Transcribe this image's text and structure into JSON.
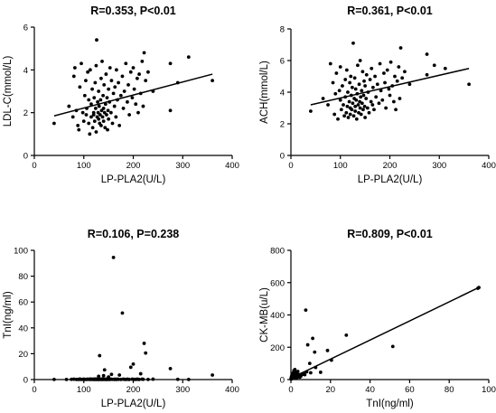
{
  "chart_data": [
    {
      "type": "scatter",
      "title": "R=0.353, P<0.01",
      "xlabel": "LP-PLA2(U/L)",
      "ylabel": "LDL-C(mmol/L)",
      "xlim": [
        0,
        400
      ],
      "ylim": [
        0,
        6
      ],
      "xticks": [
        0,
        100,
        200,
        300,
        400
      ],
      "yticks": [
        0,
        2,
        4,
        6
      ],
      "fit_line": [
        [
          40,
          1.85
        ],
        [
          360,
          3.8
        ]
      ],
      "points": [
        [
          40,
          1.5
        ],
        [
          70,
          2.3
        ],
        [
          78,
          1.8
        ],
        [
          80,
          3.7
        ],
        [
          82,
          4.1
        ],
        [
          85,
          2.1
        ],
        [
          88,
          1.4
        ],
        [
          90,
          1.2
        ],
        [
          92,
          3.2
        ],
        [
          95,
          4.3
        ],
        [
          98,
          2.0
        ],
        [
          100,
          1.6
        ],
        [
          102,
          2.8
        ],
        [
          104,
          3.5
        ],
        [
          105,
          1.9
        ],
        [
          106,
          2.2
        ],
        [
          108,
          3.9
        ],
        [
          110,
          1.5
        ],
        [
          110,
          2.6
        ],
        [
          112,
          1.0
        ],
        [
          113,
          4.0
        ],
        [
          115,
          2.4
        ],
        [
          115,
          1.8
        ],
        [
          117,
          3.1
        ],
        [
          118,
          1.3
        ],
        [
          120,
          2.0
        ],
        [
          120,
          1.9
        ],
        [
          121,
          2.7
        ],
        [
          122,
          1.6
        ],
        [
          123,
          3.4
        ],
        [
          124,
          2.2
        ],
        [
          125,
          1.1
        ],
        [
          125,
          4.2
        ],
        [
          126,
          5.4
        ],
        [
          127,
          1.8
        ],
        [
          128,
          2.5
        ],
        [
          129,
          2.0
        ],
        [
          130,
          1.7
        ],
        [
          130,
          3.0
        ],
        [
          131,
          2.3
        ],
        [
          132,
          1.5
        ],
        [
          133,
          1.9
        ],
        [
          134,
          2.6
        ],
        [
          135,
          3.6
        ],
        [
          135,
          1.4
        ],
        [
          136,
          2.1
        ],
        [
          137,
          4.4
        ],
        [
          138,
          1.8
        ],
        [
          139,
          2.8
        ],
        [
          140,
          2.2
        ],
        [
          140,
          1.6
        ],
        [
          141,
          3.3
        ],
        [
          142,
          2.0
        ],
        [
          143,
          1.3
        ],
        [
          144,
          2.4
        ],
        [
          145,
          3.8
        ],
        [
          146,
          1.9
        ],
        [
          147,
          2.7
        ],
        [
          148,
          1.2
        ],
        [
          149,
          2.1
        ],
        [
          150,
          3.1
        ],
        [
          150,
          1.7
        ],
        [
          152,
          2.5
        ],
        [
          153,
          4.1
        ],
        [
          155,
          2.0
        ],
        [
          156,
          3.5
        ],
        [
          158,
          1.5
        ],
        [
          160,
          2.9
        ],
        [
          162,
          2.3
        ],
        [
          163,
          3.2
        ],
        [
          165,
          1.8
        ],
        [
          166,
          4.0
        ],
        [
          168,
          2.6
        ],
        [
          170,
          3.4
        ],
        [
          172,
          1.4
        ],
        [
          175,
          2.8
        ],
        [
          178,
          3.7
        ],
        [
          180,
          2.2
        ],
        [
          182,
          3.0
        ],
        [
          185,
          4.3
        ],
        [
          188,
          2.5
        ],
        [
          190,
          3.3
        ],
        [
          192,
          1.9
        ],
        [
          195,
          3.9
        ],
        [
          198,
          2.7
        ],
        [
          200,
          4.1
        ],
        [
          202,
          3.1
        ],
        [
          205,
          2.4
        ],
        [
          208,
          3.6
        ],
        [
          210,
          2.0
        ],
        [
          212,
          3.8
        ],
        [
          215,
          2.9
        ],
        [
          218,
          4.4
        ],
        [
          220,
          2.3
        ],
        [
          222,
          4.8
        ],
        [
          225,
          3.5
        ],
        [
          230,
          3.9
        ],
        [
          240,
          3.0
        ],
        [
          275,
          2.1
        ],
        [
          275,
          4.3
        ],
        [
          290,
          3.4
        ],
        [
          312,
          4.6
        ],
        [
          360,
          3.5
        ]
      ]
    },
    {
      "type": "scatter",
      "title": "R=0.361, P<0.01",
      "xlabel": "LP-PLA2(U/L)",
      "ylabel": "ACH(mmol/L)",
      "xlim": [
        0,
        400
      ],
      "ylim": [
        0,
        8
      ],
      "xticks": [
        0,
        100,
        200,
        300,
        400
      ],
      "yticks": [
        0,
        2,
        4,
        6,
        8
      ],
      "fit_line": [
        [
          40,
          3.2
        ],
        [
          360,
          5.5
        ]
      ],
      "points": [
        [
          40,
          2.8
        ],
        [
          65,
          3.6
        ],
        [
          75,
          3.2
        ],
        [
          80,
          5.8
        ],
        [
          85,
          4.6
        ],
        [
          88,
          2.6
        ],
        [
          90,
          3.9
        ],
        [
          92,
          5.2
        ],
        [
          95,
          2.3
        ],
        [
          98,
          4.1
        ],
        [
          100,
          3.5
        ],
        [
          100,
          5.6
        ],
        [
          102,
          2.9
        ],
        [
          104,
          4.4
        ],
        [
          106,
          3.2
        ],
        [
          108,
          2.5
        ],
        [
          110,
          4.8
        ],
        [
          110,
          3.7
        ],
        [
          112,
          2.7
        ],
        [
          113,
          5.4
        ],
        [
          114,
          3.1
        ],
        [
          115,
          4.0
        ],
        [
          116,
          2.4
        ],
        [
          118,
          3.4
        ],
        [
          119,
          4.6
        ],
        [
          120,
          3.0
        ],
        [
          120,
          2.6
        ],
        [
          121,
          5.0
        ],
        [
          122,
          3.8
        ],
        [
          123,
          2.9
        ],
        [
          124,
          4.3
        ],
        [
          125,
          3.3
        ],
        [
          126,
          7.1
        ],
        [
          127,
          2.5
        ],
        [
          128,
          3.6
        ],
        [
          129,
          4.9
        ],
        [
          130,
          3.1
        ],
        [
          130,
          2.8
        ],
        [
          131,
          4.2
        ],
        [
          132,
          3.5
        ],
        [
          133,
          2.3
        ],
        [
          134,
          3.9
        ],
        [
          135,
          5.7
        ],
        [
          136,
          3.2
        ],
        [
          137,
          2.7
        ],
        [
          138,
          4.5
        ],
        [
          139,
          3.4
        ],
        [
          140,
          3.0
        ],
        [
          140,
          6.0
        ],
        [
          141,
          3.7
        ],
        [
          142,
          2.6
        ],
        [
          143,
          4.1
        ],
        [
          144,
          3.3
        ],
        [
          145,
          5.3
        ],
        [
          146,
          2.9
        ],
        [
          147,
          3.8
        ],
        [
          148,
          4.7
        ],
        [
          149,
          3.1
        ],
        [
          150,
          2.4
        ],
        [
          150,
          4.4
        ],
        [
          152,
          3.6
        ],
        [
          153,
          5.1
        ],
        [
          155,
          3.0
        ],
        [
          156,
          4.0
        ],
        [
          158,
          2.7
        ],
        [
          160,
          4.8
        ],
        [
          162,
          3.4
        ],
        [
          163,
          5.5
        ],
        [
          165,
          3.2
        ],
        [
          166,
          4.3
        ],
        [
          168,
          2.9
        ],
        [
          170,
          5.0
        ],
        [
          172,
          3.7
        ],
        [
          175,
          4.5
        ],
        [
          178,
          3.3
        ],
        [
          180,
          5.8
        ],
        [
          182,
          4.1
        ],
        [
          185,
          3.5
        ],
        [
          188,
          5.2
        ],
        [
          190,
          4.6
        ],
        [
          192,
          3.0
        ],
        [
          195,
          5.4
        ],
        [
          198,
          4.2
        ],
        [
          200,
          3.8
        ],
        [
          202,
          5.9
        ],
        [
          205,
          4.4
        ],
        [
          208,
          3.4
        ],
        [
          210,
          5.0
        ],
        [
          212,
          2.9
        ],
        [
          215,
          4.7
        ],
        [
          218,
          5.6
        ],
        [
          220,
          3.6
        ],
        [
          222,
          6.8
        ],
        [
          225,
          4.9
        ],
        [
          230,
          5.3
        ],
        [
          240,
          4.5
        ],
        [
          275,
          5.1
        ],
        [
          275,
          6.4
        ],
        [
          290,
          5.7
        ],
        [
          312,
          5.5
        ],
        [
          360,
          4.5
        ]
      ]
    },
    {
      "type": "scatter",
      "title": "R=0.106, P=0.238",
      "xlabel": "LP-PLA2(U/L)",
      "ylabel": "TnI(ng/ml)",
      "xlim": [
        0,
        400
      ],
      "ylim": [
        0,
        100
      ],
      "xticks": [
        0,
        100,
        200,
        300,
        400
      ],
      "yticks": [
        0,
        20,
        40,
        60,
        80,
        100
      ],
      "points": [
        [
          40,
          0.1
        ],
        [
          65,
          0.1
        ],
        [
          75,
          0.2
        ],
        [
          80,
          0.3
        ],
        [
          85,
          0.1
        ],
        [
          88,
          0.2
        ],
        [
          90,
          0.1
        ],
        [
          92,
          0.4
        ],
        [
          95,
          0.1
        ],
        [
          98,
          0.2
        ],
        [
          100,
          0.3
        ],
        [
          102,
          0.1
        ],
        [
          104,
          0.2
        ],
        [
          106,
          0.1
        ],
        [
          108,
          0.3
        ],
        [
          110,
          0.2
        ],
        [
          112,
          0.1
        ],
        [
          113,
          0.4
        ],
        [
          115,
          0.1
        ],
        [
          116,
          0.3
        ],
        [
          118,
          0.2
        ],
        [
          119,
          0.1
        ],
        [
          120,
          0.3
        ],
        [
          121,
          0.2
        ],
        [
          122,
          0.1
        ],
        [
          123,
          0.4
        ],
        [
          124,
          0.2
        ],
        [
          125,
          0.1
        ],
        [
          126,
          0.3
        ],
        [
          127,
          0.2
        ],
        [
          128,
          0.1
        ],
        [
          129,
          0.3
        ],
        [
          130,
          0.1
        ],
        [
          130,
          2.5
        ],
        [
          131,
          0.2
        ],
        [
          132,
          18.5
        ],
        [
          133,
          0.1
        ],
        [
          134,
          0.3
        ],
        [
          135,
          0.2
        ],
        [
          136,
          0.1
        ],
        [
          137,
          0.4
        ],
        [
          138,
          0.2
        ],
        [
          139,
          0.1
        ],
        [
          140,
          3.0
        ],
        [
          140,
          0.3
        ],
        [
          141,
          0.2
        ],
        [
          142,
          7.5
        ],
        [
          143,
          0.1
        ],
        [
          144,
          0.3
        ],
        [
          145,
          0.2
        ],
        [
          146,
          0.1
        ],
        [
          147,
          0.4
        ],
        [
          148,
          0.2
        ],
        [
          149,
          0.1
        ],
        [
          150,
          2.0
        ],
        [
          150,
          0.3
        ],
        [
          152,
          0.2
        ],
        [
          153,
          0.1
        ],
        [
          155,
          0.3
        ],
        [
          156,
          4.0
        ],
        [
          158,
          0.2
        ],
        [
          160,
          94.5
        ],
        [
          162,
          0.1
        ],
        [
          163,
          0.3
        ],
        [
          165,
          0.2
        ],
        [
          166,
          0.1
        ],
        [
          168,
          0.3
        ],
        [
          170,
          0.2
        ],
        [
          172,
          3.5
        ],
        [
          175,
          0.1
        ],
        [
          178,
          51.5
        ],
        [
          180,
          0.3
        ],
        [
          182,
          0.2
        ],
        [
          185,
          0.1
        ],
        [
          188,
          0.3
        ],
        [
          190,
          0.2
        ],
        [
          192,
          0.1
        ],
        [
          195,
          9.5
        ],
        [
          198,
          0.3
        ],
        [
          200,
          12.0
        ],
        [
          202,
          0.2
        ],
        [
          205,
          0.1
        ],
        [
          208,
          0.3
        ],
        [
          210,
          0.2
        ],
        [
          212,
          0.1
        ],
        [
          215,
          4.5
        ],
        [
          218,
          0.3
        ],
        [
          220,
          0.2
        ],
        [
          222,
          28.0
        ],
        [
          225,
          20.5
        ],
        [
          230,
          0.1
        ],
        [
          240,
          0.3
        ],
        [
          275,
          8.5
        ],
        [
          290,
          0.2
        ],
        [
          312,
          0.1
        ],
        [
          360,
          3.5
        ]
      ]
    },
    {
      "type": "scatter",
      "title": "R=0.809, P<0.01",
      "xlabel": "TnI(ng/ml)",
      "ylabel": "CK-MB(u/L)",
      "xlim": [
        0,
        100
      ],
      "ylim": [
        0,
        800
      ],
      "xticks": [
        0,
        20,
        40,
        60,
        80,
        100
      ],
      "yticks": [
        0,
        200,
        400,
        600,
        800
      ],
      "fit_line": [
        [
          0,
          8
        ],
        [
          95,
          570
        ]
      ],
      "points": [
        [
          0.1,
          3
        ],
        [
          0.1,
          8
        ],
        [
          0.2,
          5
        ],
        [
          0.2,
          12
        ],
        [
          0.3,
          4
        ],
        [
          0.3,
          18
        ],
        [
          0.4,
          7
        ],
        [
          0.5,
          10
        ],
        [
          0.5,
          25
        ],
        [
          0.6,
          6
        ],
        [
          0.7,
          15
        ],
        [
          0.8,
          9
        ],
        [
          0.9,
          30
        ],
        [
          1.0,
          12
        ],
        [
          1.0,
          40
        ],
        [
          1.2,
          20
        ],
        [
          1.3,
          8
        ],
        [
          1.5,
          55
        ],
        [
          1.6,
          14
        ],
        [
          1.8,
          35
        ],
        [
          2.0,
          10
        ],
        [
          2.0,
          62
        ],
        [
          2.2,
          22
        ],
        [
          2.5,
          16
        ],
        [
          2.5,
          45
        ],
        [
          2.8,
          28
        ],
        [
          3.0,
          12
        ],
        [
          3.0,
          38
        ],
        [
          3.3,
          20
        ],
        [
          3.5,
          50
        ],
        [
          3.8,
          18
        ],
        [
          4.0,
          26
        ],
        [
          4.2,
          30
        ],
        [
          4.5,
          15
        ],
        [
          5.0,
          20
        ],
        [
          5.5,
          35
        ],
        [
          6.0,
          32
        ],
        [
          6.5,
          40
        ],
        [
          7.0,
          30
        ],
        [
          7.5,
          430
        ],
        [
          8.0,
          48
        ],
        [
          8.5,
          215
        ],
        [
          9.5,
          100
        ],
        [
          10.0,
          42
        ],
        [
          11.0,
          255
        ],
        [
          12.0,
          170
        ],
        [
          12.5,
          75
        ],
        [
          15.0,
          45
        ],
        [
          18.5,
          180
        ],
        [
          20.5,
          120
        ],
        [
          28.0,
          275
        ],
        [
          51.5,
          205
        ],
        [
          94.5,
          565
        ],
        [
          95.0,
          570
        ]
      ]
    }
  ]
}
